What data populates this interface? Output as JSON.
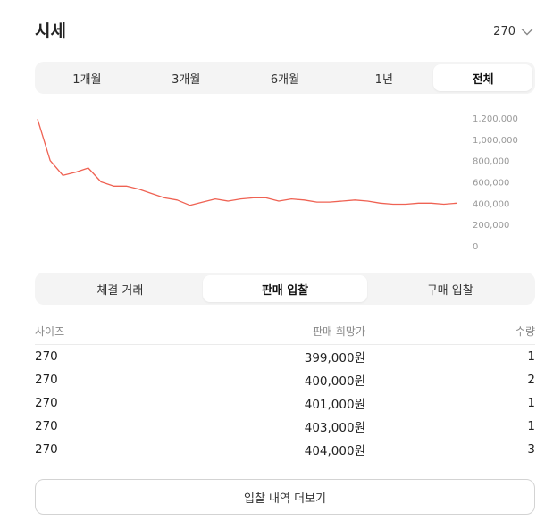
{
  "header": {
    "title": "시세",
    "size_value": "270"
  },
  "period_tabs": [
    {
      "label": "1개월",
      "active": false
    },
    {
      "label": "3개월",
      "active": false
    },
    {
      "label": "6개월",
      "active": false
    },
    {
      "label": "1년",
      "active": false
    },
    {
      "label": "전체",
      "active": true
    }
  ],
  "chart_data": {
    "type": "line",
    "ylim": [
      0,
      1200000
    ],
    "y_ticks": [
      "1,200,000",
      "1,000,000",
      "800,000",
      "600,000",
      "400,000",
      "200,000",
      "0"
    ],
    "y_tick_values": [
      1200000,
      1000000,
      800000,
      600000,
      400000,
      200000,
      0
    ],
    "line_color": "#ef6253",
    "series": [
      {
        "values": [
          1190000,
          800000,
          660000,
          690000,
          730000,
          600000,
          560000,
          560000,
          530000,
          490000,
          450000,
          430000,
          380000,
          410000,
          440000,
          420000,
          440000,
          450000,
          450000,
          420000,
          440000,
          430000,
          410000,
          410000,
          420000,
          430000,
          420000,
          400000,
          390000,
          390000,
          400000,
          400000,
          390000,
          400000
        ]
      }
    ]
  },
  "trade_tabs": [
    {
      "label": "체결 거래",
      "active": false
    },
    {
      "label": "판매 입찰",
      "active": true
    },
    {
      "label": "구매 입찰",
      "active": false
    }
  ],
  "table": {
    "headers": {
      "size": "사이즈",
      "price": "판매 희망가",
      "qty": "수량"
    },
    "rows": [
      {
        "size": "270",
        "price": "399,000원",
        "qty": "1"
      },
      {
        "size": "270",
        "price": "400,000원",
        "qty": "2"
      },
      {
        "size": "270",
        "price": "401,000원",
        "qty": "1"
      },
      {
        "size": "270",
        "price": "403,000원",
        "qty": "1"
      },
      {
        "size": "270",
        "price": "404,000원",
        "qty": "3"
      }
    ]
  },
  "more_button": "입찰 내역 더보기"
}
